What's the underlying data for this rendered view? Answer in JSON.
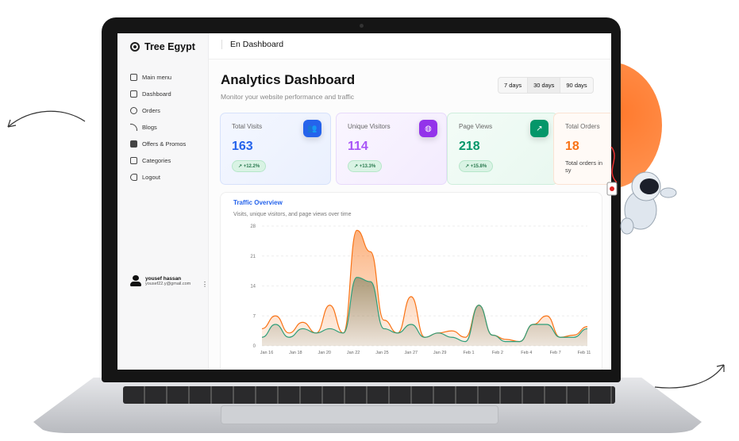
{
  "brand": "Tree Egypt",
  "header": {
    "breadcrumb": "En Dashboard"
  },
  "sidebar": {
    "items": [
      {
        "label": "Main menu",
        "icon": "grid-icon"
      },
      {
        "label": "Dashboard",
        "icon": "dashboard-icon"
      },
      {
        "label": "Orders",
        "icon": "box-icon"
      },
      {
        "label": "Blogs",
        "icon": "rss-icon"
      },
      {
        "label": "Offers & Promos",
        "icon": "tag-icon"
      },
      {
        "label": "Categories",
        "icon": "list-icon"
      },
      {
        "label": "Logout",
        "icon": "logout-icon"
      }
    ],
    "user": {
      "name": "yousef hassan",
      "email": "yousef22.y@gmail.com"
    }
  },
  "main": {
    "title": "Analytics Dashboard",
    "subtitle": "Monitor your website performance and traffic",
    "ranges": [
      "7 days",
      "30 days",
      "90 days"
    ],
    "selected_range": "30 days",
    "cards": [
      {
        "title": "Total Visits",
        "value": "163",
        "badge": "+12.2%",
        "color": "#2563eb",
        "icon": "users-icon"
      },
      {
        "title": "Unique Visitors",
        "value": "114",
        "badge": "+13.3%",
        "color": "#9333ea",
        "icon": "globe-icon"
      },
      {
        "title": "Page Views",
        "value": "218",
        "badge": "+15.8%",
        "color": "#059669",
        "icon": "trending-up-icon"
      },
      {
        "title": "Total Orders",
        "value": "18",
        "note": "Total orders in sy",
        "color": "#f97316"
      }
    ]
  },
  "chart_data": {
    "type": "area",
    "title": "Traffic Overview",
    "subtitle": "Visits, unique visitors, and page views over time",
    "ylim": [
      0,
      28
    ],
    "yticks": [
      0,
      7,
      14,
      21,
      28
    ],
    "grid": true,
    "xticks": [
      "Jan 16",
      "Jan 18",
      "Jan 20",
      "Jan 22",
      "Jan 25",
      "Jan 27",
      "Jan 29",
      "Feb 1",
      "Feb 2",
      "Feb 4",
      "Feb 7",
      "Feb 11"
    ],
    "series": [
      {
        "color": "#f97316",
        "values": [
          4,
          7,
          3,
          5.5,
          3,
          9.5,
          3,
          27,
          22,
          6,
          3,
          11.5,
          2,
          3,
          3.5,
          2,
          9.5,
          2.5,
          1.5,
          1,
          5,
          7,
          2,
          2.5,
          4.5
        ]
      },
      {
        "color": "#2f9e7a",
        "values": [
          2,
          5,
          2,
          4,
          3,
          4,
          3,
          16,
          15,
          4,
          3,
          5,
          2,
          3,
          2,
          1,
          9.5,
          2.5,
          1,
          1,
          5,
          5,
          2,
          2,
          4
        ]
      }
    ]
  }
}
